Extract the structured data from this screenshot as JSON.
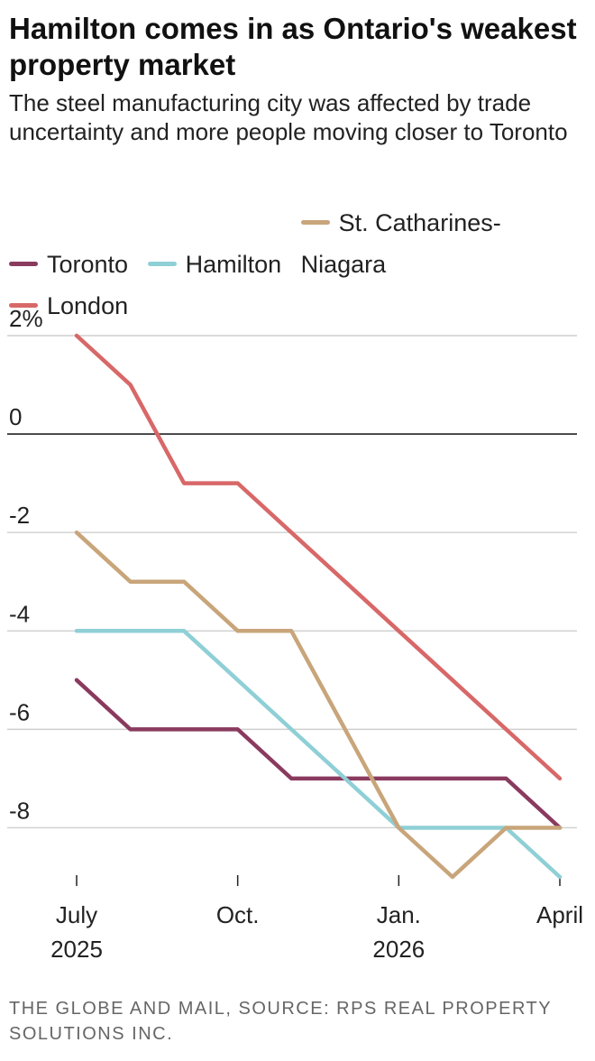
{
  "title": "Hamilton comes in as Ontario's weakest property market",
  "subtitle": "The steel manufacturing city was affected by trade uncertainty and more people moving closer to Toronto",
  "source": "THE GLOBE AND MAIL, SOURCE: RPS REAL PROPERTY SOLUTIONS INC.",
  "legend": [
    {
      "label": "Toronto",
      "color": "#8a3a5f"
    },
    {
      "label": "Hamilton",
      "color": "#8fcfd6"
    },
    {
      "label": "St. Catharines-\nNiagara",
      "color": "#c8a57a"
    },
    {
      "label": "London",
      "color": "#d86868"
    }
  ],
  "chart_data": {
    "type": "line",
    "title": "Hamilton comes in as Ontario's weakest property market",
    "subtitle": "The steel manufacturing city was affected by trade uncertainty and more people moving closer to Toronto",
    "xlabel": "",
    "ylabel": "",
    "x": [
      "2025-07",
      "2025-08",
      "2025-09",
      "2025-10",
      "2025-11",
      "2025-12",
      "2026-01",
      "2026-02",
      "2026-03",
      "2026-04"
    ],
    "x_tick_labels": [
      {
        "x": "2025-07",
        "lines": [
          "July",
          "2025"
        ]
      },
      {
        "x": "2025-10",
        "lines": [
          "Oct.",
          ""
        ]
      },
      {
        "x": "2026-01",
        "lines": [
          "Jan.",
          "2026"
        ]
      },
      {
        "x": "2026-04",
        "lines": [
          "April",
          ""
        ]
      }
    ],
    "y_ticks": [
      2,
      0,
      -2,
      -4,
      -6,
      -8
    ],
    "y_tick_labels": [
      "2%",
      "0",
      "-2",
      "-4",
      "-6",
      "-8"
    ],
    "ylim": [
      -9,
      2
    ],
    "grid": true,
    "zero_line": true,
    "legend_position": "top",
    "series": [
      {
        "name": "Toronto",
        "color": "#8a3a5f",
        "values": [
          -5,
          -6,
          -6,
          -6,
          -7,
          -7,
          -7,
          -7,
          -7,
          -8
        ]
      },
      {
        "name": "Hamilton",
        "color": "#8fcfd6",
        "values": [
          -4,
          -4,
          -4,
          -5,
          -6,
          -7,
          -8,
          -8,
          -8,
          -9
        ]
      },
      {
        "name": "St. Catharines-Niagara",
        "color": "#c8a57a",
        "values": [
          -2,
          -3,
          -3,
          -4,
          -4,
          -6,
          -8,
          -9,
          -8,
          -8
        ]
      },
      {
        "name": "London",
        "color": "#d86868",
        "values": [
          2,
          1,
          -1,
          -1,
          -2,
          -3,
          -4,
          -5,
          -6,
          -7
        ]
      }
    ]
  }
}
